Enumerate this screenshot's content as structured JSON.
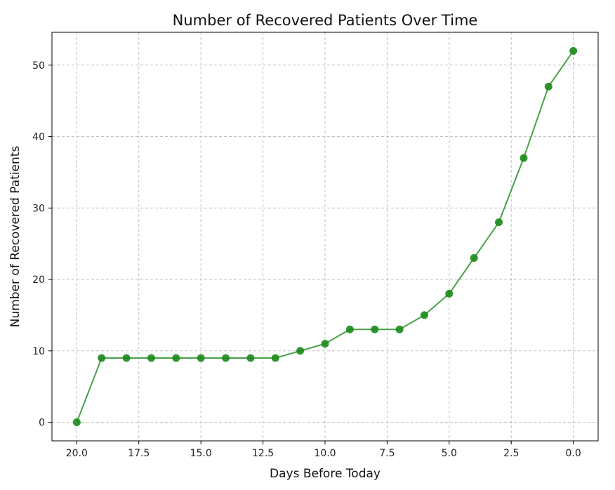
{
  "chart_data": {
    "type": "line",
    "title": "Number of Recovered Patients Over Time",
    "xlabel": "Days Before Today",
    "ylabel": "Number of Recovered Patients",
    "x_inverted": true,
    "xlim": [
      21,
      -1
    ],
    "ylim": [
      -2.6,
      54.6
    ],
    "grid": true,
    "grid_style": "dashed",
    "x_ticks": [
      20,
      17.5,
      15,
      12.5,
      10,
      7.5,
      5,
      2.5,
      0
    ],
    "x_tick_labels": [
      "20.0",
      "17.5",
      "15.0",
      "12.5",
      "10.0",
      "7.5",
      "5.0",
      "2.5",
      "0.0"
    ],
    "y_ticks": [
      0,
      10,
      20,
      30,
      40,
      50
    ],
    "y_tick_labels": [
      "0",
      "10",
      "20",
      "30",
      "40",
      "50"
    ],
    "series": [
      {
        "color": "#1a8a1a",
        "x": [
          20,
          19,
          18,
          17,
          16,
          15,
          14,
          13,
          12,
          11,
          10,
          9,
          8,
          7,
          6,
          5,
          4,
          3,
          2,
          1,
          0
        ],
        "y": [
          0,
          9,
          9,
          9,
          9,
          9,
          9,
          9,
          9,
          10,
          11,
          13,
          13,
          13,
          15,
          18,
          23,
          28,
          37,
          47,
          52
        ]
      }
    ]
  }
}
